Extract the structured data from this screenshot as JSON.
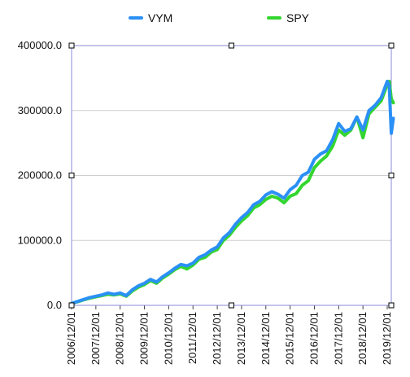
{
  "chart_data": {
    "type": "line",
    "title": "",
    "xlabel": "",
    "ylabel": "",
    "legend_position": "top",
    "grid": true,
    "ylim": [
      0,
      400000
    ],
    "y_ticks": [
      "0.0",
      "100000.0",
      "200000.0",
      "300000.0",
      "400000.0"
    ],
    "x_ticks": [
      "2006/12/01",
      "2007/12/01",
      "2008/12/01",
      "2009/12/01",
      "2010/12/01",
      "2011/12/01",
      "2012/12/01",
      "2013/12/01",
      "2014/12/01",
      "2015/12/01",
      "2016/12/01",
      "2017/12/01",
      "2018/12/01",
      "2019/12/01"
    ],
    "xlim": [
      "2006/12/01",
      "2020/02/01"
    ],
    "series": [
      {
        "name": "VYM",
        "color": "#2B90F5",
        "points": [
          [
            "2006/12/01",
            3000
          ],
          [
            "2007/03/01",
            6000
          ],
          [
            "2007/06/01",
            9000
          ],
          [
            "2007/09/01",
            12000
          ],
          [
            "2007/12/01",
            14000
          ],
          [
            "2008/03/01",
            16000
          ],
          [
            "2008/06/01",
            19000
          ],
          [
            "2008/09/01",
            17000
          ],
          [
            "2008/12/01",
            19000
          ],
          [
            "2009/03/01",
            15000
          ],
          [
            "2009/06/01",
            24000
          ],
          [
            "2009/09/01",
            30000
          ],
          [
            "2009/12/01",
            34000
          ],
          [
            "2010/03/01",
            40000
          ],
          [
            "2010/06/01",
            36000
          ],
          [
            "2010/09/01",
            44000
          ],
          [
            "2010/12/01",
            50000
          ],
          [
            "2011/03/01",
            57000
          ],
          [
            "2011/06/01",
            63000
          ],
          [
            "2011/09/01",
            61000
          ],
          [
            "2011/12/01",
            65000
          ],
          [
            "2012/03/01",
            74000
          ],
          [
            "2012/06/01",
            78000
          ],
          [
            "2012/09/01",
            85000
          ],
          [
            "2012/12/01",
            90000
          ],
          [
            "2013/03/01",
            104000
          ],
          [
            "2013/06/01",
            112000
          ],
          [
            "2013/09/01",
            125000
          ],
          [
            "2013/12/01",
            135000
          ],
          [
            "2014/03/01",
            143000
          ],
          [
            "2014/06/01",
            155000
          ],
          [
            "2014/09/01",
            160000
          ],
          [
            "2014/12/01",
            170000
          ],
          [
            "2015/03/01",
            175000
          ],
          [
            "2015/06/01",
            171000
          ],
          [
            "2015/09/01",
            165000
          ],
          [
            "2015/12/01",
            178000
          ],
          [
            "2016/03/01",
            185000
          ],
          [
            "2016/06/01",
            200000
          ],
          [
            "2016/09/01",
            205000
          ],
          [
            "2016/12/01",
            225000
          ],
          [
            "2017/03/01",
            233000
          ],
          [
            "2017/06/01",
            238000
          ],
          [
            "2017/09/01",
            255000
          ],
          [
            "2017/12/01",
            280000
          ],
          [
            "2018/03/01",
            268000
          ],
          [
            "2018/06/01",
            272000
          ],
          [
            "2018/09/01",
            290000
          ],
          [
            "2018/12/01",
            270000
          ],
          [
            "2019/03/01",
            300000
          ],
          [
            "2019/06/01",
            308000
          ],
          [
            "2019/09/01",
            320000
          ],
          [
            "2019/12/01",
            345000
          ],
          [
            "2020/01/01",
            338000
          ],
          [
            "2020/02/01",
            265000
          ],
          [
            "2020/03/01",
            288000
          ]
        ]
      },
      {
        "name": "SPY",
        "color": "#33D62F",
        "points": [
          [
            "2006/12/01",
            3000
          ],
          [
            "2007/03/01",
            5500
          ],
          [
            "2007/06/01",
            8500
          ],
          [
            "2007/09/01",
            11000
          ],
          [
            "2007/12/01",
            13000
          ],
          [
            "2008/03/01",
            15000
          ],
          [
            "2008/06/01",
            17000
          ],
          [
            "2008/09/01",
            16000
          ],
          [
            "2008/12/01",
            17500
          ],
          [
            "2009/03/01",
            14000
          ],
          [
            "2009/06/01",
            22000
          ],
          [
            "2009/09/01",
            28000
          ],
          [
            "2009/12/01",
            32000
          ],
          [
            "2010/03/01",
            38000
          ],
          [
            "2010/06/01",
            34000
          ],
          [
            "2010/09/01",
            42000
          ],
          [
            "2010/12/01",
            48000
          ],
          [
            "2011/03/01",
            55000
          ],
          [
            "2011/06/01",
            60000
          ],
          [
            "2011/09/01",
            56000
          ],
          [
            "2011/12/01",
            62000
          ],
          [
            "2012/03/01",
            71000
          ],
          [
            "2012/06/01",
            74000
          ],
          [
            "2012/09/01",
            82000
          ],
          [
            "2012/12/01",
            86000
          ],
          [
            "2013/03/01",
            100000
          ],
          [
            "2013/06/01",
            108000
          ],
          [
            "2013/09/01",
            120000
          ],
          [
            "2013/12/01",
            130000
          ],
          [
            "2014/03/01",
            138000
          ],
          [
            "2014/06/01",
            150000
          ],
          [
            "2014/09/01",
            155000
          ],
          [
            "2014/12/01",
            163000
          ],
          [
            "2015/03/01",
            168000
          ],
          [
            "2015/06/01",
            165000
          ],
          [
            "2015/09/01",
            158000
          ],
          [
            "2015/12/01",
            168000
          ],
          [
            "2016/03/01",
            172000
          ],
          [
            "2016/06/01",
            185000
          ],
          [
            "2016/09/01",
            192000
          ],
          [
            "2016/12/01",
            212000
          ],
          [
            "2017/03/01",
            222000
          ],
          [
            "2017/06/01",
            230000
          ],
          [
            "2017/09/01",
            245000
          ],
          [
            "2017/12/01",
            270000
          ],
          [
            "2018/03/01",
            262000
          ],
          [
            "2018/06/01",
            270000
          ],
          [
            "2018/09/01",
            290000
          ],
          [
            "2018/12/01",
            258000
          ],
          [
            "2019/03/01",
            295000
          ],
          [
            "2019/06/01",
            305000
          ],
          [
            "2019/09/01",
            315000
          ],
          [
            "2019/12/01",
            340000
          ],
          [
            "2020/01/01",
            345000
          ],
          [
            "2020/02/01",
            318000
          ],
          [
            "2020/03/01",
            312000
          ]
        ]
      }
    ]
  }
}
